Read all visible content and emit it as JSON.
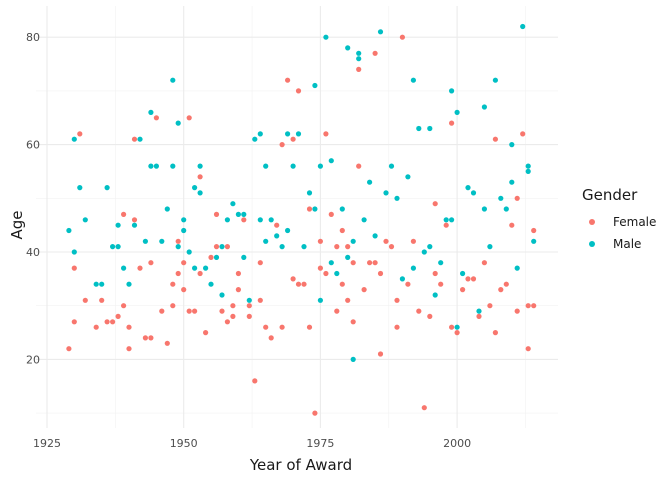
{
  "chart_data": {
    "type": "scatter",
    "xlabel": "Year of Award",
    "ylabel": "Age",
    "xlim": [
      1925,
      2016
    ],
    "ylim": [
      6,
      86
    ],
    "x_ticks": [
      1925,
      1950,
      1975,
      2000
    ],
    "y_ticks": [
      20,
      40,
      60,
      80
    ],
    "grid": true,
    "legend": {
      "title": "Gender",
      "placement": "right"
    },
    "series": [
      {
        "name": "Female",
        "color": "#F8766D",
        "points": [
          [
            1929,
            22
          ],
          [
            1930,
            37
          ],
          [
            1930,
            27
          ],
          [
            1931,
            62
          ],
          [
            1932,
            31
          ],
          [
            1934,
            26
          ],
          [
            1935,
            31
          ],
          [
            1936,
            27
          ],
          [
            1937,
            27
          ],
          [
            1938,
            28
          ],
          [
            1939,
            30
          ],
          [
            1939,
            47
          ],
          [
            1940,
            22
          ],
          [
            1940,
            26
          ],
          [
            1941,
            46
          ],
          [
            1941,
            61
          ],
          [
            1942,
            37
          ],
          [
            1943,
            24
          ],
          [
            1944,
            24
          ],
          [
            1944,
            38
          ],
          [
            1945,
            65
          ],
          [
            1946,
            29
          ],
          [
            1947,
            23
          ],
          [
            1948,
            30
          ],
          [
            1948,
            34
          ],
          [
            1949,
            36
          ],
          [
            1949,
            42
          ],
          [
            1950,
            33
          ],
          [
            1950,
            38
          ],
          [
            1951,
            65
          ],
          [
            1951,
            29
          ],
          [
            1952,
            29
          ],
          [
            1953,
            54
          ],
          [
            1953,
            36
          ],
          [
            1954,
            25
          ],
          [
            1955,
            39
          ],
          [
            1956,
            41
          ],
          [
            1956,
            47
          ],
          [
            1957,
            29
          ],
          [
            1958,
            41
          ],
          [
            1958,
            27
          ],
          [
            1959,
            30
          ],
          [
            1959,
            28
          ],
          [
            1960,
            33
          ],
          [
            1960,
            36
          ],
          [
            1961,
            46
          ],
          [
            1962,
            28
          ],
          [
            1962,
            30
          ],
          [
            1963,
            16
          ],
          [
            1964,
            38
          ],
          [
            1964,
            31
          ],
          [
            1965,
            26
          ],
          [
            1966,
            24
          ],
          [
            1967,
            45
          ],
          [
            1968,
            60
          ],
          [
            1968,
            26
          ],
          [
            1969,
            72
          ],
          [
            1970,
            35
          ],
          [
            1970,
            61
          ],
          [
            1971,
            34
          ],
          [
            1971,
            70
          ],
          [
            1972,
            34
          ],
          [
            1973,
            26
          ],
          [
            1973,
            48
          ],
          [
            1974,
            10
          ],
          [
            1975,
            42
          ],
          [
            1975,
            37
          ],
          [
            1976,
            36
          ],
          [
            1976,
            62
          ],
          [
            1977,
            47
          ],
          [
            1978,
            41
          ],
          [
            1978,
            29
          ],
          [
            1979,
            34
          ],
          [
            1979,
            44
          ],
          [
            1980,
            31
          ],
          [
            1980,
            41
          ],
          [
            1981,
            27
          ],
          [
            1981,
            38
          ],
          [
            1982,
            74
          ],
          [
            1982,
            56
          ],
          [
            1983,
            33
          ],
          [
            1984,
            38
          ],
          [
            1985,
            77
          ],
          [
            1985,
            38
          ],
          [
            1986,
            36
          ],
          [
            1986,
            21
          ],
          [
            1987,
            42
          ],
          [
            1988,
            41
          ],
          [
            1989,
            26
          ],
          [
            1989,
            31
          ],
          [
            1990,
            80
          ],
          [
            1991,
            34
          ],
          [
            1992,
            42
          ],
          [
            1993,
            29
          ],
          [
            1994,
            11
          ],
          [
            1995,
            28
          ],
          [
            1996,
            36
          ],
          [
            1996,
            49
          ],
          [
            1997,
            34
          ],
          [
            1998,
            45
          ],
          [
            1999,
            64
          ],
          [
            1999,
            26
          ],
          [
            2000,
            25
          ],
          [
            2001,
            33
          ],
          [
            2002,
            35
          ],
          [
            2003,
            35
          ],
          [
            2004,
            28
          ],
          [
            2005,
            38
          ],
          [
            2006,
            30
          ],
          [
            2007,
            25
          ],
          [
            2007,
            61
          ],
          [
            2008,
            33
          ],
          [
            2009,
            34
          ],
          [
            2010,
            45
          ],
          [
            2011,
            29
          ],
          [
            2011,
            50
          ],
          [
            2012,
            62
          ],
          [
            2013,
            22
          ],
          [
            2013,
            30
          ],
          [
            2014,
            44
          ],
          [
            2014,
            30
          ]
        ]
      },
      {
        "name": "Male",
        "color": "#00BFC4",
        "points": [
          [
            1929,
            44
          ],
          [
            1930,
            61
          ],
          [
            1930,
            40
          ],
          [
            1931,
            52
          ],
          [
            1932,
            46
          ],
          [
            1934,
            34
          ],
          [
            1935,
            34
          ],
          [
            1936,
            52
          ],
          [
            1937,
            41
          ],
          [
            1938,
            41
          ],
          [
            1938,
            45
          ],
          [
            1939,
            37
          ],
          [
            1940,
            34
          ],
          [
            1941,
            45
          ],
          [
            1942,
            61
          ],
          [
            1943,
            42
          ],
          [
            1944,
            66
          ],
          [
            1944,
            56
          ],
          [
            1945,
            56
          ],
          [
            1946,
            42
          ],
          [
            1947,
            48
          ],
          [
            1948,
            72
          ],
          [
            1948,
            56
          ],
          [
            1949,
            64
          ],
          [
            1949,
            41
          ],
          [
            1950,
            44
          ],
          [
            1950,
            46
          ],
          [
            1951,
            40
          ],
          [
            1952,
            52
          ],
          [
            1952,
            37
          ],
          [
            1953,
            51
          ],
          [
            1953,
            56
          ],
          [
            1954,
            37
          ],
          [
            1955,
            34
          ],
          [
            1956,
            39
          ],
          [
            1957,
            41
          ],
          [
            1957,
            32
          ],
          [
            1958,
            46
          ],
          [
            1959,
            49
          ],
          [
            1960,
            47
          ],
          [
            1961,
            39
          ],
          [
            1961,
            47
          ],
          [
            1962,
            31
          ],
          [
            1963,
            61
          ],
          [
            1964,
            62
          ],
          [
            1964,
            46
          ],
          [
            1965,
            56
          ],
          [
            1965,
            42
          ],
          [
            1966,
            46
          ],
          [
            1967,
            43
          ],
          [
            1968,
            41
          ],
          [
            1969,
            44
          ],
          [
            1969,
            62
          ],
          [
            1970,
            56
          ],
          [
            1971,
            62
          ],
          [
            1972,
            41
          ],
          [
            1973,
            51
          ],
          [
            1974,
            48
          ],
          [
            1974,
            71
          ],
          [
            1975,
            56
          ],
          [
            1975,
            31
          ],
          [
            1976,
            80
          ],
          [
            1977,
            57
          ],
          [
            1977,
            38
          ],
          [
            1978,
            36
          ],
          [
            1979,
            48
          ],
          [
            1980,
            39
          ],
          [
            1980,
            78
          ],
          [
            1981,
            20
          ],
          [
            1981,
            42
          ],
          [
            1982,
            77
          ],
          [
            1982,
            76
          ],
          [
            1983,
            46
          ],
          [
            1984,
            53
          ],
          [
            1985,
            43
          ],
          [
            1986,
            81
          ],
          [
            1987,
            51
          ],
          [
            1988,
            56
          ],
          [
            1989,
            50
          ],
          [
            1990,
            35
          ],
          [
            1991,
            54
          ],
          [
            1992,
            72
          ],
          [
            1992,
            37
          ],
          [
            1993,
            63
          ],
          [
            1994,
            40
          ],
          [
            1995,
            63
          ],
          [
            1995,
            41
          ],
          [
            1996,
            32
          ],
          [
            1997,
            38
          ],
          [
            1998,
            46
          ],
          [
            1999,
            70
          ],
          [
            1999,
            46
          ],
          [
            2000,
            66
          ],
          [
            2000,
            26
          ],
          [
            2001,
            36
          ],
          [
            2002,
            52
          ],
          [
            2003,
            51
          ],
          [
            2004,
            29
          ],
          [
            2005,
            67
          ],
          [
            2005,
            48
          ],
          [
            2006,
            41
          ],
          [
            2007,
            72
          ],
          [
            2008,
            50
          ],
          [
            2009,
            48
          ],
          [
            2010,
            60
          ],
          [
            2010,
            53
          ],
          [
            2011,
            37
          ],
          [
            2012,
            82
          ],
          [
            2013,
            56
          ],
          [
            2013,
            55
          ],
          [
            2014,
            42
          ]
        ]
      }
    ]
  }
}
